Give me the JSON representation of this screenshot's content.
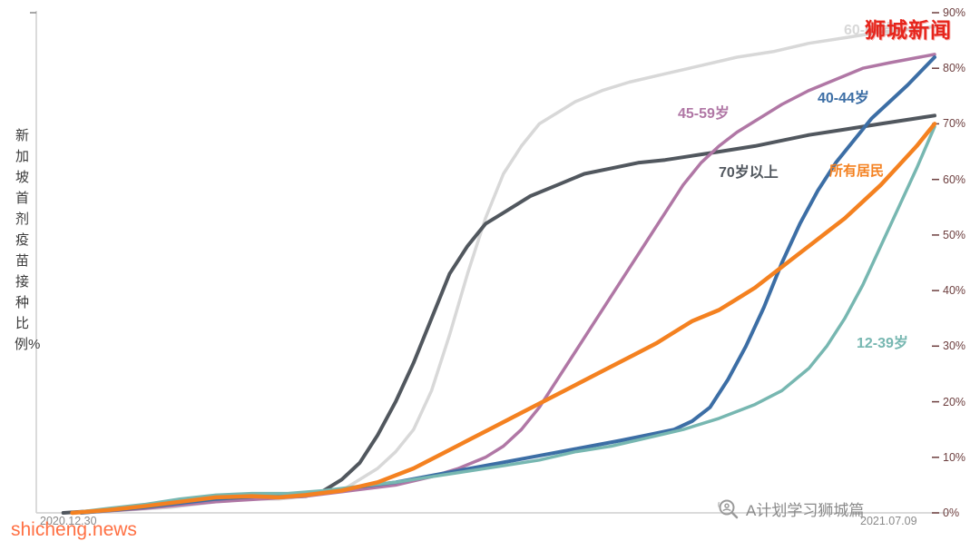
{
  "page": {
    "background": "#ffffff"
  },
  "watermarks": {
    "top_right": "狮城新闻",
    "bottom_left": "shicheng.news",
    "bottom_right": "A计划学习狮城篇"
  },
  "axis": {
    "ylabel": "新加坡首剂疫苗接种比例%",
    "x_start": "2020.12.30",
    "x_end": "2021.07.09",
    "yticks": [
      "90%",
      "80%",
      "70%",
      "60%",
      "50%",
      "40%",
      "30%",
      "20%",
      "10%",
      "0%"
    ]
  },
  "chart_data": {
    "type": "line",
    "title": "",
    "ylabel": "新加坡首剂疫苗接种比例%",
    "x_range": [
      "2020.12.30",
      "2021.07.09"
    ],
    "ylim": [
      0,
      90
    ],
    "grid": false,
    "legend": "inline-labels",
    "series": [
      {
        "key": "60-69",
        "name": "60-69岁",
        "color": "#d8d8d8",
        "width": 3.5,
        "points": [
          [
            0.03,
            0
          ],
          [
            0.1,
            0.5
          ],
          [
            0.15,
            1
          ],
          [
            0.2,
            2
          ],
          [
            0.24,
            2.5
          ],
          [
            0.27,
            2.5
          ],
          [
            0.3,
            3
          ],
          [
            0.34,
            4
          ],
          [
            0.36,
            6
          ],
          [
            0.38,
            8
          ],
          [
            0.4,
            11
          ],
          [
            0.42,
            15
          ],
          [
            0.44,
            22
          ],
          [
            0.46,
            32
          ],
          [
            0.48,
            43
          ],
          [
            0.5,
            53
          ],
          [
            0.52,
            61
          ],
          [
            0.54,
            66
          ],
          [
            0.56,
            70
          ],
          [
            0.58,
            72
          ],
          [
            0.6,
            74
          ],
          [
            0.63,
            76
          ],
          [
            0.66,
            77.5
          ],
          [
            0.7,
            79
          ],
          [
            0.74,
            80.5
          ],
          [
            0.78,
            82
          ],
          [
            0.82,
            83
          ],
          [
            0.86,
            84.5
          ],
          [
            0.9,
            85.5
          ],
          [
            0.94,
            86.5
          ],
          [
            0.97,
            87
          ],
          [
            1.0,
            87.5
          ]
        ]
      },
      {
        "key": "70plus",
        "name": "70岁以上",
        "color": "#51575e",
        "width": 4,
        "points": [
          [
            0.03,
            0
          ],
          [
            0.08,
            0.5
          ],
          [
            0.12,
            1
          ],
          [
            0.16,
            1.5
          ],
          [
            0.2,
            2.5
          ],
          [
            0.23,
            3
          ],
          [
            0.26,
            2.8
          ],
          [
            0.3,
            3
          ],
          [
            0.32,
            4
          ],
          [
            0.34,
            6
          ],
          [
            0.36,
            9
          ],
          [
            0.38,
            14
          ],
          [
            0.4,
            20
          ],
          [
            0.42,
            27
          ],
          [
            0.44,
            35
          ],
          [
            0.46,
            43
          ],
          [
            0.48,
            48
          ],
          [
            0.5,
            52
          ],
          [
            0.52,
            54
          ],
          [
            0.55,
            57
          ],
          [
            0.58,
            59
          ],
          [
            0.61,
            61
          ],
          [
            0.64,
            62
          ],
          [
            0.67,
            63
          ],
          [
            0.7,
            63.5
          ],
          [
            0.72,
            64
          ],
          [
            0.74,
            64.5
          ],
          [
            0.76,
            65
          ],
          [
            0.78,
            65.5
          ],
          [
            0.8,
            66
          ],
          [
            0.83,
            67
          ],
          [
            0.86,
            68
          ],
          [
            0.9,
            69
          ],
          [
            0.94,
            70
          ],
          [
            1.0,
            71.5
          ]
        ]
      },
      {
        "key": "45-59",
        "name": "45-59岁",
        "color": "#b077a5",
        "width": 3.5,
        "points": [
          [
            0.05,
            0
          ],
          [
            0.12,
            0.8
          ],
          [
            0.2,
            2
          ],
          [
            0.25,
            2.5
          ],
          [
            0.3,
            3
          ],
          [
            0.35,
            4
          ],
          [
            0.4,
            5
          ],
          [
            0.44,
            6.5
          ],
          [
            0.47,
            8
          ],
          [
            0.5,
            10
          ],
          [
            0.52,
            12
          ],
          [
            0.54,
            15
          ],
          [
            0.56,
            19
          ],
          [
            0.58,
            24
          ],
          [
            0.6,
            29
          ],
          [
            0.62,
            34
          ],
          [
            0.64,
            39
          ],
          [
            0.66,
            44
          ],
          [
            0.68,
            49
          ],
          [
            0.7,
            54
          ],
          [
            0.72,
            59
          ],
          [
            0.74,
            63
          ],
          [
            0.76,
            66
          ],
          [
            0.78,
            68.5
          ],
          [
            0.8,
            70.5
          ],
          [
            0.83,
            73.5
          ],
          [
            0.86,
            76
          ],
          [
            0.89,
            78
          ],
          [
            0.92,
            80
          ],
          [
            0.95,
            81
          ],
          [
            1.0,
            82.5
          ]
        ]
      },
      {
        "key": "40-44",
        "name": "40-44岁",
        "color": "#3c6ea5",
        "width": 4,
        "points": [
          [
            0.05,
            0
          ],
          [
            0.12,
            1
          ],
          [
            0.2,
            2.5
          ],
          [
            0.25,
            3
          ],
          [
            0.3,
            3.5
          ],
          [
            0.35,
            4.5
          ],
          [
            0.4,
            5.5
          ],
          [
            0.45,
            7
          ],
          [
            0.5,
            8.5
          ],
          [
            0.55,
            10
          ],
          [
            0.6,
            11.5
          ],
          [
            0.65,
            13
          ],
          [
            0.68,
            14
          ],
          [
            0.71,
            15
          ],
          [
            0.73,
            16.5
          ],
          [
            0.75,
            19
          ],
          [
            0.77,
            24
          ],
          [
            0.79,
            30
          ],
          [
            0.81,
            37
          ],
          [
            0.83,
            45
          ],
          [
            0.85,
            52
          ],
          [
            0.87,
            58
          ],
          [
            0.89,
            63
          ],
          [
            0.91,
            67
          ],
          [
            0.93,
            71
          ],
          [
            0.95,
            74
          ],
          [
            0.97,
            77
          ],
          [
            1.0,
            82
          ]
        ]
      },
      {
        "key": "12-39",
        "name": "12-39岁",
        "color": "#77b7b1",
        "width": 3.5,
        "points": [
          [
            0.04,
            0
          ],
          [
            0.08,
            0.8
          ],
          [
            0.12,
            1.5
          ],
          [
            0.16,
            2.5
          ],
          [
            0.2,
            3.2
          ],
          [
            0.24,
            3.5
          ],
          [
            0.28,
            3.5
          ],
          [
            0.32,
            4
          ],
          [
            0.36,
            4.8
          ],
          [
            0.4,
            5.5
          ],
          [
            0.44,
            6.5
          ],
          [
            0.48,
            7.5
          ],
          [
            0.52,
            8.5
          ],
          [
            0.56,
            9.5
          ],
          [
            0.6,
            11
          ],
          [
            0.64,
            12
          ],
          [
            0.68,
            13.5
          ],
          [
            0.72,
            15
          ],
          [
            0.76,
            17
          ],
          [
            0.8,
            19.5
          ],
          [
            0.83,
            22
          ],
          [
            0.86,
            26
          ],
          [
            0.88,
            30
          ],
          [
            0.9,
            35
          ],
          [
            0.92,
            41
          ],
          [
            0.94,
            48
          ],
          [
            0.96,
            55
          ],
          [
            0.98,
            62
          ],
          [
            1.0,
            69.5
          ]
        ]
      },
      {
        "key": "all-residents",
        "name": "所有居民",
        "color": "#f48120",
        "width": 4.5,
        "points": [
          [
            0.04,
            0
          ],
          [
            0.08,
            0.5
          ],
          [
            0.12,
            1.2
          ],
          [
            0.16,
            2
          ],
          [
            0.2,
            2.8
          ],
          [
            0.24,
            3
          ],
          [
            0.27,
            2.8
          ],
          [
            0.3,
            3.2
          ],
          [
            0.34,
            4
          ],
          [
            0.38,
            5.5
          ],
          [
            0.42,
            8
          ],
          [
            0.45,
            10.5
          ],
          [
            0.48,
            13
          ],
          [
            0.51,
            15.5
          ],
          [
            0.54,
            18
          ],
          [
            0.57,
            20.5
          ],
          [
            0.6,
            23
          ],
          [
            0.63,
            25.5
          ],
          [
            0.66,
            28
          ],
          [
            0.69,
            30.5
          ],
          [
            0.71,
            32.5
          ],
          [
            0.73,
            34.5
          ],
          [
            0.76,
            36.5
          ],
          [
            0.78,
            38.5
          ],
          [
            0.8,
            40.5
          ],
          [
            0.82,
            43
          ],
          [
            0.84,
            45.5
          ],
          [
            0.86,
            48
          ],
          [
            0.88,
            50.5
          ],
          [
            0.9,
            53
          ],
          [
            0.92,
            56
          ],
          [
            0.94,
            59
          ],
          [
            0.96,
            62.5
          ],
          [
            0.98,
            66
          ],
          [
            1.0,
            70
          ]
        ]
      }
    ]
  }
}
